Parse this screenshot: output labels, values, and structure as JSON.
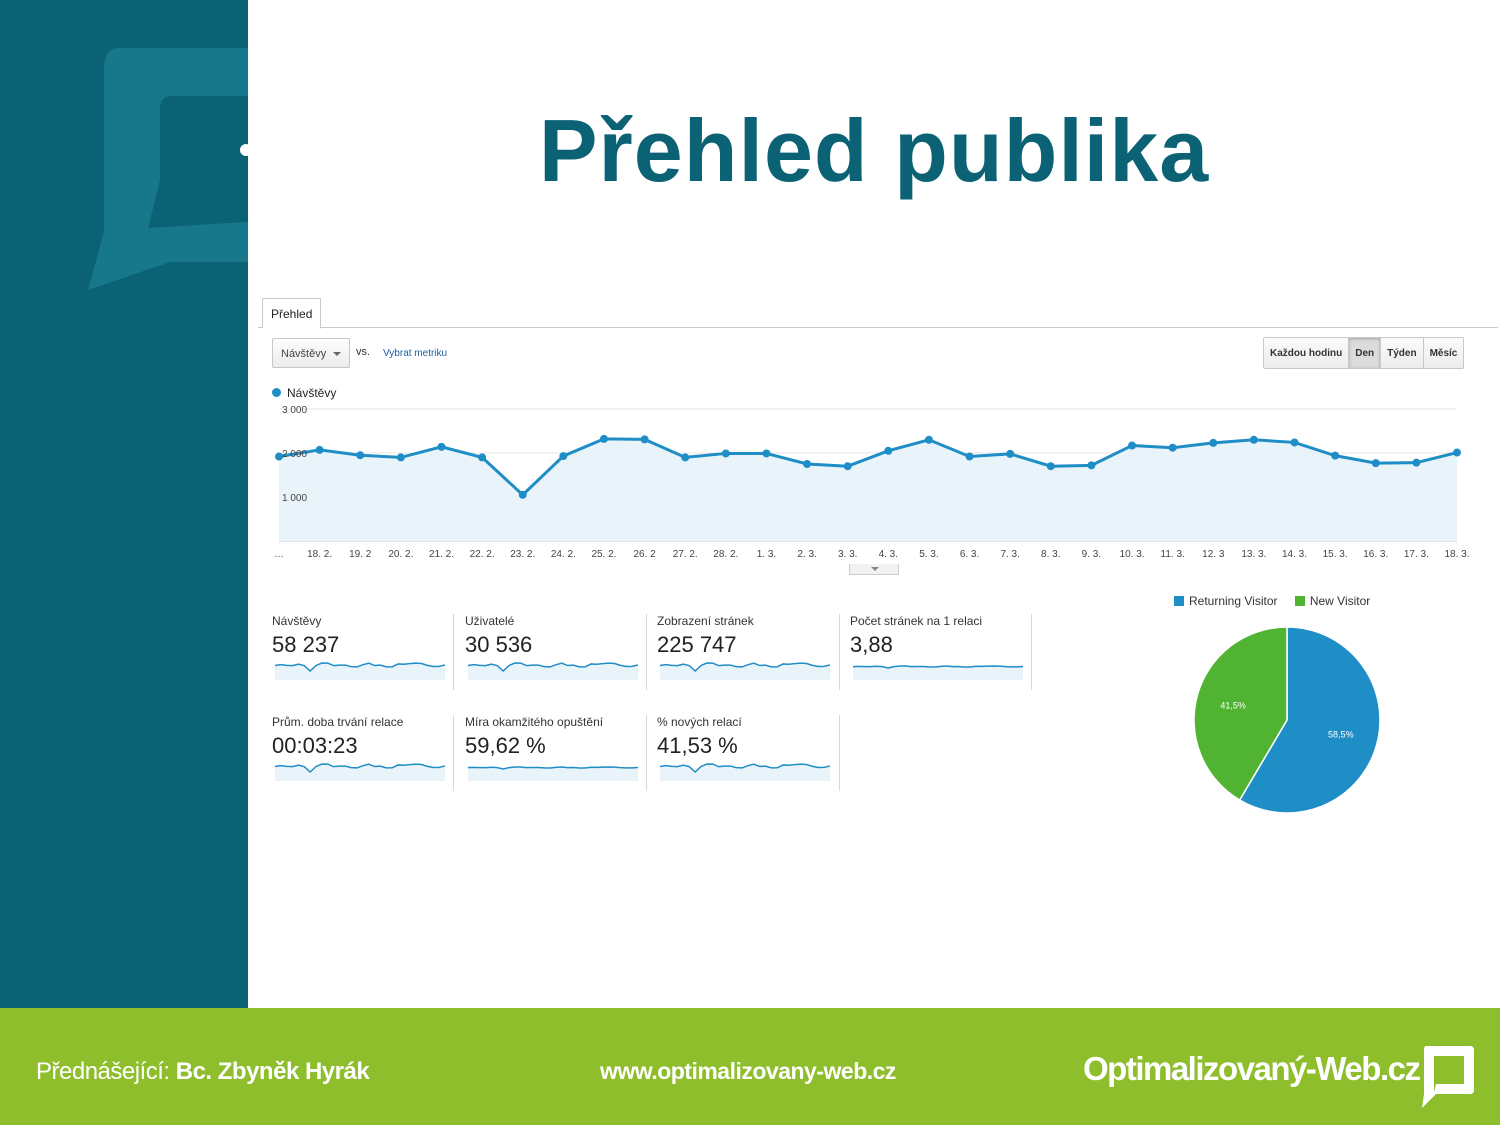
{
  "slide": {
    "title": "Přehled publika",
    "colors": {
      "primary": "#0c6275",
      "accent_green": "#8fbe2c",
      "series_blue": "#1f8dc6",
      "series_green": "#50b432"
    }
  },
  "analytics": {
    "tab_label": "Přehled",
    "metric_select": "Návštěvy",
    "vs_label": "vs.",
    "pick_metric_link": "Vybrat metriku",
    "granularity_buttons": [
      {
        "label": "Každou hodinu",
        "active": false
      },
      {
        "label": "Den",
        "active": true
      },
      {
        "label": "Týden",
        "active": false
      },
      {
        "label": "Měsíc",
        "active": false
      }
    ],
    "legend_label": "Návštěvy",
    "stats_row1": [
      {
        "label": "Návštěvy",
        "value": "58 237"
      },
      {
        "label": "Uživatelé",
        "value": "30 536"
      },
      {
        "label": "Zobrazení stránek",
        "value": "225 747"
      },
      {
        "label": "Počet stránek na 1 relaci",
        "value": "3,88"
      }
    ],
    "stats_row2": [
      {
        "label": "Prům. doba trvání relace",
        "value": "00:03:23"
      },
      {
        "label": "Míra okamžitého opuštění",
        "value": "59,62 %"
      },
      {
        "label": "% nových relací",
        "value": "41,53 %"
      }
    ]
  },
  "chart_data": [
    {
      "type": "area",
      "series": [
        {
          "name": "Návštěvy",
          "values": [
            1920,
            2070,
            1950,
            1900,
            2140,
            1900,
            1050,
            1930,
            2320,
            2310,
            1900,
            1990,
            1990,
            1750,
            1700,
            2050,
            2300,
            1920,
            1980,
            1700,
            1720,
            2170,
            2120,
            2230,
            2300,
            2240,
            1940,
            1770,
            1780,
            2010
          ]
        }
      ],
      "categories": [
        "…",
        "18. 2.",
        "19. 2",
        "20. 2.",
        "21. 2.",
        "22. 2.",
        "23. 2.",
        "24. 2.",
        "25. 2.",
        "26. 2",
        "27. 2.",
        "28. 2.",
        "1. 3.",
        "2. 3.",
        "3. 3.",
        "4. 3.",
        "5. 3.",
        "6. 3.",
        "7. 3.",
        "8. 3.",
        "9. 3.",
        "10. 3.",
        "11. 3.",
        "12. 3",
        "13. 3.",
        "14. 3.",
        "15. 3.",
        "16. 3.",
        "17. 3.",
        "18. 3."
      ],
      "ytick_labels": [
        "3 000",
        "2 000",
        "1 000"
      ],
      "yticks": [
        3000,
        2000,
        1000
      ],
      "ylim": [
        0,
        3000
      ],
      "grid": true
    },
    {
      "type": "pie",
      "series": [
        {
          "name": "Returning Visitor",
          "value": 58.5,
          "label": "58,5%",
          "color": "#1f8dc6"
        },
        {
          "name": "New Visitor",
          "value": 41.5,
          "label": "41,5%",
          "color": "#50b432"
        }
      ],
      "legend_position": "top"
    }
  ],
  "footer": {
    "speaker_prefix": "Přednášející:",
    "speaker_name": "Bc. Zbyněk Hyrák",
    "url": "www.optimalizovany-web.cz",
    "brand": "Optimalizovaný-Web.cz"
  }
}
